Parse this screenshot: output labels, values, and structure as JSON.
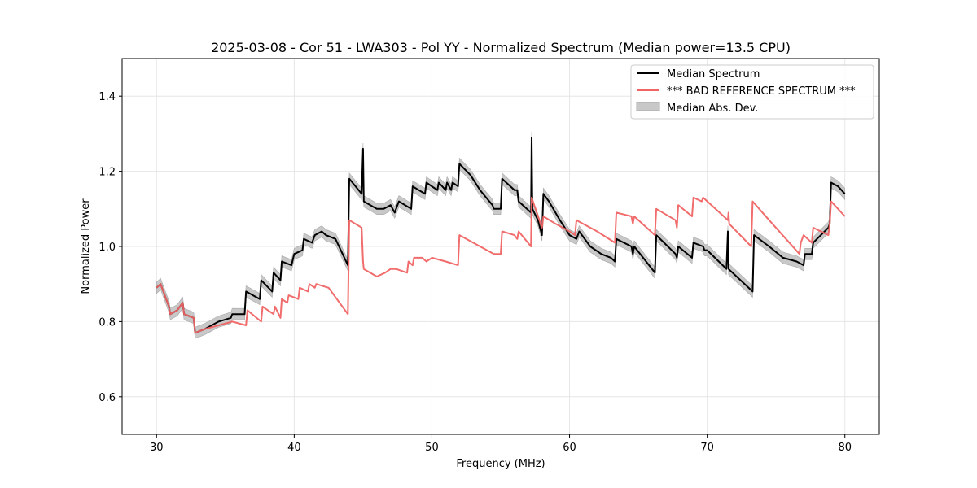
{
  "chart_data": {
    "type": "line",
    "title": "2025-03-08 - Cor 51 - LWA303 - Pol YY - Normalized Spectrum (Median power=13.5 CPU)",
    "xlabel": "Frequency (MHz)",
    "ylabel": "Normalized Power",
    "xlim": [
      27.5,
      82.5
    ],
    "ylim": [
      0.5,
      1.5
    ],
    "xticks": [
      30,
      40,
      50,
      60,
      70,
      80
    ],
    "yticks": [
      0.6,
      0.8,
      1.0,
      1.2,
      1.4
    ],
    "xtick_labels": [
      "30",
      "40",
      "50",
      "60",
      "70",
      "80"
    ],
    "ytick_labels": [
      "0.6",
      "0.8",
      "1.0",
      "1.2",
      "1.4"
    ],
    "grid": true,
    "legend_position": "top-right",
    "legend": [
      {
        "label": "Median Spectrum",
        "color": "#000000",
        "kind": "line"
      },
      {
        "label": "*** BAD REFERENCE SPECTRUM ***",
        "color": "#f06464",
        "kind": "line"
      },
      {
        "label": "Median Abs. Dev.",
        "color": "#c8c8c8",
        "kind": "patch"
      }
    ],
    "series": [
      {
        "name": "Median Spectrum",
        "color": "#000000",
        "mad": 0.015,
        "points": [
          [
            30.0,
            0.89
          ],
          [
            30.3,
            0.9
          ],
          [
            30.6,
            0.87
          ],
          [
            30.9,
            0.84
          ],
          [
            31.0,
            0.82
          ],
          [
            31.5,
            0.83
          ],
          [
            31.9,
            0.85
          ],
          [
            32.0,
            0.82
          ],
          [
            32.7,
            0.81
          ],
          [
            32.8,
            0.77
          ],
          [
            33.5,
            0.78
          ],
          [
            34.5,
            0.8
          ],
          [
            35.4,
            0.81
          ],
          [
            35.5,
            0.82
          ],
          [
            36.3,
            0.82
          ],
          [
            36.4,
            0.82
          ],
          [
            36.5,
            0.88
          ],
          [
            37.5,
            0.86
          ],
          [
            37.6,
            0.91
          ],
          [
            38.4,
            0.88
          ],
          [
            38.5,
            0.93
          ],
          [
            39.0,
            0.91
          ],
          [
            39.1,
            0.96
          ],
          [
            39.8,
            0.95
          ],
          [
            40.0,
            0.98
          ],
          [
            40.6,
            0.99
          ],
          [
            40.7,
            1.02
          ],
          [
            41.3,
            1.01
          ],
          [
            41.5,
            1.03
          ],
          [
            42.0,
            1.04
          ],
          [
            42.3,
            1.03
          ],
          [
            43.0,
            1.02
          ],
          [
            43.9,
            0.95
          ],
          [
            44.0,
            1.18
          ],
          [
            44.9,
            1.14
          ],
          [
            45.0,
            1.26
          ],
          [
            45.05,
            1.12
          ],
          [
            46.0,
            1.1
          ],
          [
            46.5,
            1.1
          ],
          [
            47.0,
            1.11
          ],
          [
            47.3,
            1.09
          ],
          [
            47.6,
            1.12
          ],
          [
            48.5,
            1.1
          ],
          [
            48.6,
            1.16
          ],
          [
            49.5,
            1.14
          ],
          [
            49.6,
            1.17
          ],
          [
            50.4,
            1.15
          ],
          [
            50.5,
            1.17
          ],
          [
            51.0,
            1.15
          ],
          [
            51.1,
            1.17
          ],
          [
            51.4,
            1.15
          ],
          [
            51.5,
            1.17
          ],
          [
            51.9,
            1.16
          ],
          [
            52.0,
            1.22
          ],
          [
            52.8,
            1.19
          ],
          [
            53.5,
            1.15
          ],
          [
            54.4,
            1.11
          ],
          [
            54.5,
            1.1
          ],
          [
            55.0,
            1.1
          ],
          [
            55.1,
            1.18
          ],
          [
            56.0,
            1.15
          ],
          [
            56.2,
            1.15
          ],
          [
            56.3,
            1.12
          ],
          [
            57.2,
            1.09
          ],
          [
            57.25,
            1.29
          ],
          [
            57.3,
            1.1
          ],
          [
            57.7,
            1.07
          ],
          [
            58.0,
            1.03
          ],
          [
            58.1,
            1.14
          ],
          [
            58.5,
            1.12
          ],
          [
            59.3,
            1.07
          ],
          [
            60.0,
            1.03
          ],
          [
            60.5,
            1.02
          ],
          [
            60.7,
            1.04
          ],
          [
            61.5,
            1.0
          ],
          [
            61.9,
            0.99
          ],
          [
            62.3,
            0.98
          ],
          [
            63.0,
            0.97
          ],
          [
            63.3,
            0.96
          ],
          [
            63.4,
            1.02
          ],
          [
            64.5,
            1.0
          ],
          [
            64.6,
            0.98
          ],
          [
            64.7,
            1.0
          ],
          [
            66.2,
            0.93
          ],
          [
            66.3,
            1.03
          ],
          [
            67.7,
            0.98
          ],
          [
            67.8,
            0.97
          ],
          [
            67.9,
            1.0
          ],
          [
            68.9,
            0.97
          ],
          [
            69.0,
            1.01
          ],
          [
            69.7,
            1.0
          ],
          [
            69.8,
            0.99
          ],
          [
            70.0,
            0.99
          ],
          [
            71.4,
            0.94
          ],
          [
            71.5,
            1.04
          ],
          [
            71.55,
            0.94
          ],
          [
            73.3,
            0.88
          ],
          [
            73.4,
            1.03
          ],
          [
            74.5,
            1.0
          ],
          [
            75.5,
            0.97
          ],
          [
            76.5,
            0.96
          ],
          [
            77.0,
            0.95
          ],
          [
            77.1,
            0.98
          ],
          [
            77.6,
            0.98
          ],
          [
            77.7,
            1.01
          ],
          [
            78.8,
            1.05
          ],
          [
            78.9,
            1.06
          ],
          [
            79.0,
            1.17
          ],
          [
            79.5,
            1.16
          ],
          [
            80.0,
            1.14
          ]
        ]
      },
      {
        "name": "*** BAD REFERENCE SPECTRUM ***",
        "color": "#f06464",
        "points": [
          [
            30.0,
            0.89
          ],
          [
            30.3,
            0.9
          ],
          [
            30.6,
            0.87
          ],
          [
            30.9,
            0.84
          ],
          [
            31.0,
            0.82
          ],
          [
            31.5,
            0.83
          ],
          [
            31.9,
            0.85
          ],
          [
            32.0,
            0.82
          ],
          [
            32.7,
            0.81
          ],
          [
            32.8,
            0.77
          ],
          [
            33.5,
            0.78
          ],
          [
            34.5,
            0.79
          ],
          [
            35.5,
            0.8
          ],
          [
            36.5,
            0.79
          ],
          [
            36.6,
            0.83
          ],
          [
            37.6,
            0.8
          ],
          [
            37.7,
            0.84
          ],
          [
            38.5,
            0.82
          ],
          [
            38.6,
            0.84
          ],
          [
            39.0,
            0.81
          ],
          [
            39.1,
            0.86
          ],
          [
            39.5,
            0.85
          ],
          [
            39.6,
            0.87
          ],
          [
            40.3,
            0.86
          ],
          [
            40.4,
            0.89
          ],
          [
            41.0,
            0.88
          ],
          [
            41.1,
            0.9
          ],
          [
            41.5,
            0.89
          ],
          [
            41.6,
            0.9
          ],
          [
            42.5,
            0.89
          ],
          [
            43.9,
            0.82
          ],
          [
            44.0,
            1.07
          ],
          [
            44.9,
            1.05
          ],
          [
            45.0,
            0.96
          ],
          [
            45.05,
            0.94
          ],
          [
            46.0,
            0.92
          ],
          [
            46.6,
            0.93
          ],
          [
            47.0,
            0.94
          ],
          [
            47.4,
            0.94
          ],
          [
            48.2,
            0.93
          ],
          [
            48.3,
            0.96
          ],
          [
            48.6,
            0.95
          ],
          [
            48.7,
            0.97
          ],
          [
            49.0,
            0.97
          ],
          [
            49.3,
            0.97
          ],
          [
            49.6,
            0.96
          ],
          [
            50.0,
            0.97
          ],
          [
            51.0,
            0.96
          ],
          [
            51.9,
            0.95
          ],
          [
            52.0,
            1.03
          ],
          [
            53.0,
            1.01
          ],
          [
            54.0,
            0.99
          ],
          [
            54.5,
            0.98
          ],
          [
            55.0,
            0.98
          ],
          [
            55.1,
            1.04
          ],
          [
            56.0,
            1.03
          ],
          [
            56.2,
            1.02
          ],
          [
            56.3,
            1.04
          ],
          [
            57.2,
            1.0
          ],
          [
            57.25,
            1.13
          ],
          [
            58.0,
            1.05
          ],
          [
            58.1,
            1.08
          ],
          [
            59.0,
            1.06
          ],
          [
            60.0,
            1.04
          ],
          [
            60.4,
            1.03
          ],
          [
            60.5,
            1.07
          ],
          [
            62.0,
            1.04
          ],
          [
            63.3,
            1.01
          ],
          [
            63.4,
            1.09
          ],
          [
            64.5,
            1.08
          ],
          [
            64.6,
            1.06
          ],
          [
            64.7,
            1.08
          ],
          [
            66.2,
            1.03
          ],
          [
            66.3,
            1.1
          ],
          [
            67.7,
            1.07
          ],
          [
            67.8,
            1.05
          ],
          [
            67.9,
            1.11
          ],
          [
            68.9,
            1.08
          ],
          [
            69.0,
            1.13
          ],
          [
            69.6,
            1.12
          ],
          [
            69.7,
            1.13
          ],
          [
            71.5,
            1.07
          ],
          [
            71.55,
            1.09
          ],
          [
            71.6,
            1.06
          ],
          [
            73.2,
            1.0
          ],
          [
            73.3,
            1.12
          ],
          [
            74.5,
            1.07
          ],
          [
            76.7,
            0.98
          ],
          [
            76.8,
            1.01
          ],
          [
            77.0,
            1.03
          ],
          [
            77.6,
            1.01
          ],
          [
            77.7,
            1.05
          ],
          [
            78.8,
            1.03
          ],
          [
            78.9,
            1.06
          ],
          [
            79.0,
            1.12
          ],
          [
            80.0,
            1.08
          ]
        ]
      }
    ]
  }
}
